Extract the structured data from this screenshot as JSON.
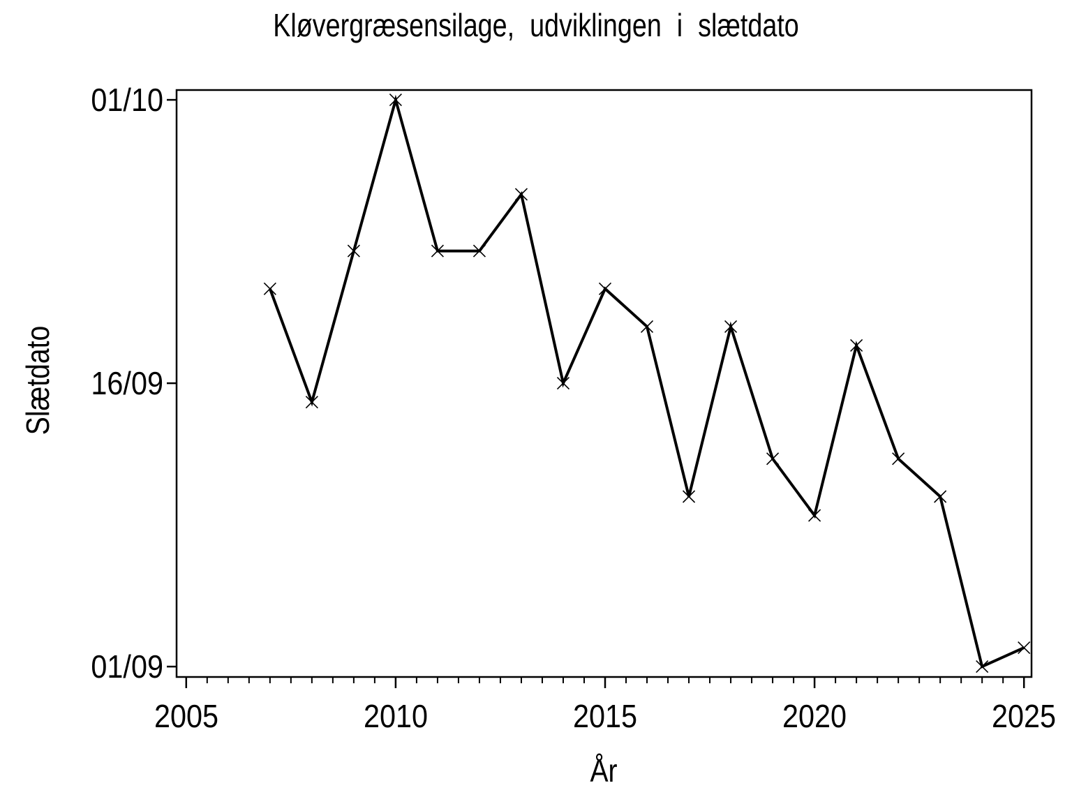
{
  "chart_data": {
    "type": "line",
    "title": "Kløvergræsensilage, udviklingen i slætdato",
    "xlabel": "År",
    "ylabel": "Slætdato",
    "series_name": "slætdato",
    "x": [
      2007,
      2008,
      2009,
      2010,
      2011,
      2012,
      2013,
      2014,
      2015,
      2016,
      2017,
      2018,
      2019,
      2020,
      2021,
      2022,
      2023,
      2024,
      2025
    ],
    "dates": [
      "21/09",
      "15/09",
      "23/09",
      "01/10",
      "23/09",
      "23/09",
      "26/09",
      "16/09",
      "21/09",
      "19/09",
      "10/09",
      "19/09",
      "12/09",
      "09/09",
      "18/09",
      "12/09",
      "10/09",
      "01/09",
      "02/09"
    ],
    "y_days_after_01_09": [
      20,
      14,
      22,
      30,
      22,
      22,
      25,
      15,
      20,
      18,
      9,
      18,
      11,
      8,
      17,
      11,
      9,
      0,
      1
    ],
    "x_ticks": {
      "major": [
        2005,
        2010,
        2015,
        2020,
        2025
      ],
      "minor_step": 0.5,
      "minor_from": 2005,
      "minor_to": 2025
    },
    "y_ticks": [
      {
        "label": "01/09",
        "day": 0
      },
      {
        "label": "16/09",
        "day": 15
      },
      {
        "label": "01/10",
        "day": 30
      }
    ],
    "x_range": [
      2004.77,
      2025.18
    ],
    "y_range_days": [
      -0.55,
      30.52
    ],
    "grid": "off",
    "legend": "none",
    "marker": "x",
    "line_color": "#000000",
    "text_color": "#000000",
    "background": "#ffffff"
  }
}
